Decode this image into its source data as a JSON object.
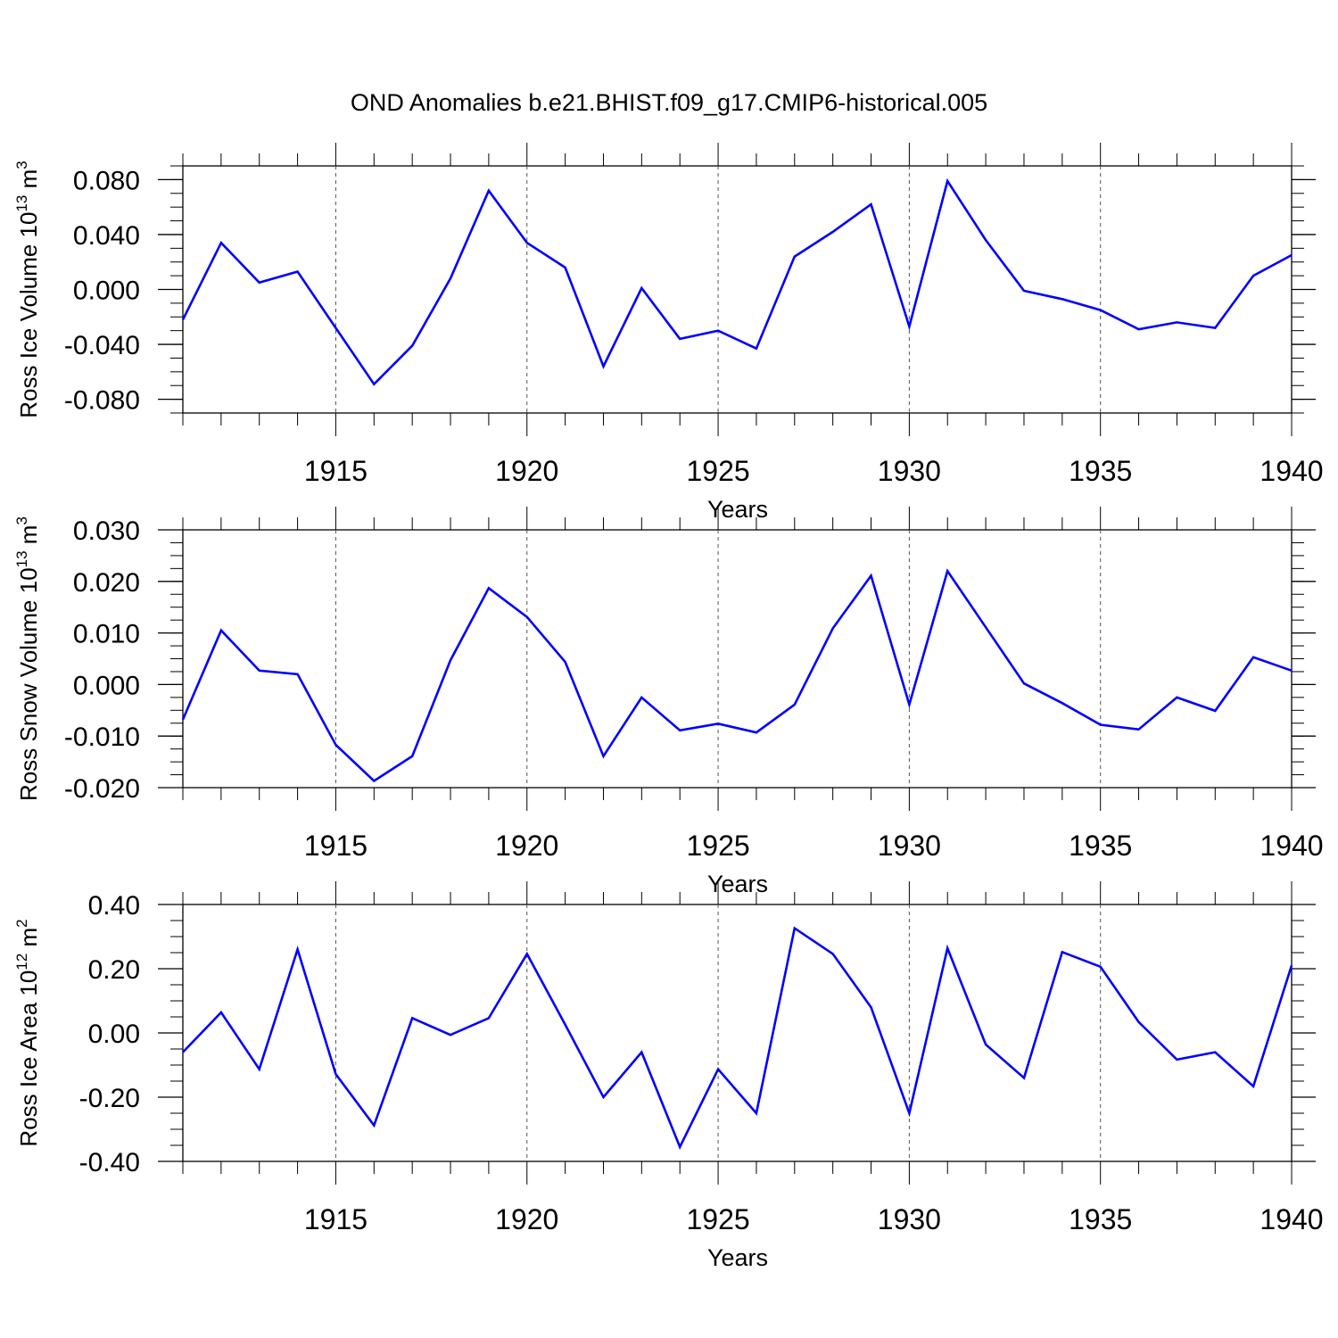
{
  "title": "OND Anomalies b.e21.BHIST.f09_g17.CMIP6-historical.005",
  "line_color": "#0000ff",
  "chart_data": [
    {
      "type": "line",
      "ylabel": {
        "main": "Ross Ice Volume 10",
        "sup": "13",
        "unit": " m",
        "unit_sup": "3"
      },
      "xlabel": "Years",
      "xlim": [
        1911,
        1940
      ],
      "ylim": [
        -0.09,
        0.09
      ],
      "x_ticks": [
        "1915",
        "1920",
        "1925",
        "1930",
        "1935",
        "1940"
      ],
      "y_ticks": [
        "-0.080",
        "-0.040",
        "0.000",
        "0.040",
        "0.080"
      ],
      "x": [
        1911,
        1912,
        1913,
        1914,
        1915,
        1916,
        1917,
        1918,
        1919,
        1920,
        1921,
        1922,
        1923,
        1924,
        1925,
        1926,
        1927,
        1928,
        1929,
        1930,
        1931,
        1932,
        1933,
        1934,
        1935,
        1936,
        1937,
        1938,
        1939,
        1940
      ],
      "series": [
        {
          "values": [
            -0.022,
            0.034,
            0.005,
            0.013,
            -0.028,
            -0.069,
            -0.041,
            0.008,
            0.072,
            0.034,
            0.016,
            -0.056,
            0.001,
            -0.036,
            -0.03,
            -0.043,
            0.024,
            0.042,
            0.062,
            -0.027,
            0.079,
            0.036,
            -0.001,
            -0.007,
            -0.015,
            -0.029,
            -0.024,
            -0.028,
            0.01,
            0.025
          ]
        }
      ]
    },
    {
      "type": "line",
      "ylabel": {
        "main": "Ross Snow Volume 10",
        "sup": "13",
        "unit": " m",
        "unit_sup": "3"
      },
      "xlabel": "Years",
      "xlim": [
        1911,
        1940
      ],
      "ylim": [
        -0.02,
        0.03
      ],
      "x_ticks": [
        "1915",
        "1920",
        "1925",
        "1930",
        "1935",
        "1940"
      ],
      "y_ticks": [
        "-0.020",
        "-0.010",
        "0.000",
        "0.010",
        "0.020",
        "0.030"
      ],
      "x": [
        1911,
        1912,
        1913,
        1914,
        1915,
        1916,
        1917,
        1918,
        1919,
        1920,
        1921,
        1922,
        1923,
        1924,
        1925,
        1926,
        1927,
        1928,
        1929,
        1930,
        1931,
        1932,
        1933,
        1934,
        1935,
        1936,
        1937,
        1938,
        1939,
        1940
      ],
      "series": [
        {
          "values": [
            -0.0068,
            0.0105,
            0.0027,
            0.002,
            -0.0117,
            -0.0187,
            -0.0139,
            0.0047,
            0.0187,
            0.0131,
            0.0044,
            -0.0139,
            -0.0025,
            -0.0089,
            -0.0076,
            -0.0093,
            -0.0039,
            0.0109,
            0.0211,
            -0.0039,
            0.022,
            0.0111,
            0.0002,
            -0.0036,
            -0.0078,
            -0.0087,
            -0.0025,
            -0.0051,
            0.0053,
            0.0027
          ]
        }
      ]
    },
    {
      "type": "line",
      "ylabel": {
        "main": "Ross Ice Area 10",
        "sup": "12",
        "unit": " m",
        "unit_sup": "2"
      },
      "xlabel": "Years",
      "xlim": [
        1911,
        1940
      ],
      "ylim": [
        -0.4,
        0.4
      ],
      "x_ticks": [
        "1915",
        "1920",
        "1925",
        "1930",
        "1935",
        "1940"
      ],
      "y_ticks": [
        "-0.40",
        "-0.20",
        "0.00",
        "0.20",
        "0.40"
      ],
      "x": [
        1911,
        1912,
        1913,
        1914,
        1915,
        1916,
        1917,
        1918,
        1919,
        1920,
        1921,
        1922,
        1923,
        1924,
        1925,
        1926,
        1927,
        1928,
        1929,
        1930,
        1931,
        1932,
        1933,
        1934,
        1935,
        1936,
        1937,
        1938,
        1939,
        1940
      ],
      "series": [
        {
          "values": [
            -0.06,
            0.064,
            -0.113,
            0.26,
            -0.128,
            -0.288,
            0.046,
            -0.006,
            0.046,
            0.246,
            0.026,
            -0.2,
            -0.06,
            -0.355,
            -0.113,
            -0.25,
            0.326,
            0.246,
            0.08,
            -0.25,
            0.264,
            -0.036,
            -0.14,
            0.252,
            0.206,
            0.034,
            -0.083,
            -0.06,
            -0.166,
            0.21
          ]
        }
      ]
    }
  ]
}
